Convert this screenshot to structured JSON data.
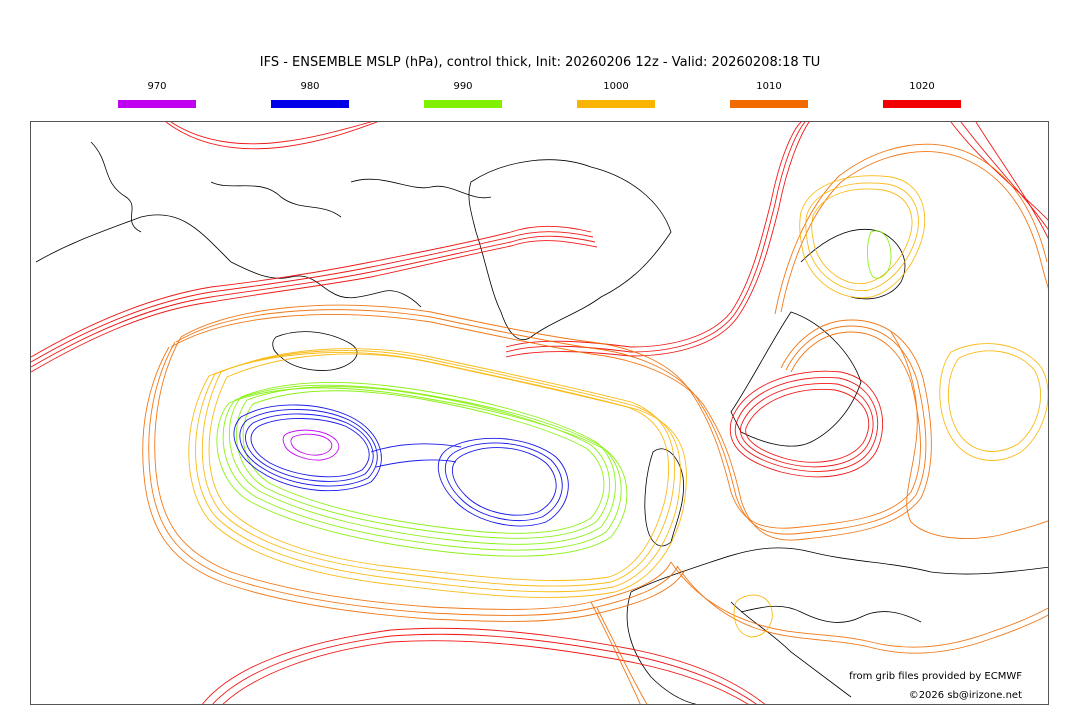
{
  "title": "IFS - ENSEMBLE MSLP (hPa), control thick, Init: 20260206 12z - Valid: 20260208:18 TU",
  "legend": [
    {
      "label": "970",
      "color": "#c000f0"
    },
    {
      "label": "980",
      "color": "#0000e8"
    },
    {
      "label": "990",
      "color": "#80f000"
    },
    {
      "label": "1000",
      "color": "#f8b400"
    },
    {
      "label": "1010",
      "color": "#f06a00"
    },
    {
      "label": "1020",
      "color": "#f00000"
    }
  ],
  "credits": {
    "source": "from grib files provided by ECMWF",
    "copyright": "©2026 sb@irizone.net"
  }
}
